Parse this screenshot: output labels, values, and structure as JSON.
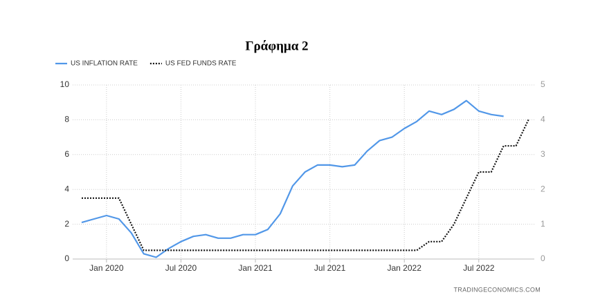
{
  "chart_data": {
    "type": "line",
    "title": "Γράφημα 2",
    "source": "TRADINGECONOMICS.COM",
    "categories": [
      null,
      null,
      "Jan 2020",
      null,
      null,
      null,
      null,
      null,
      "Jul 2020",
      null,
      null,
      null,
      null,
      null,
      "Jan 2021",
      null,
      null,
      null,
      null,
      null,
      "Jul 2021",
      null,
      null,
      null,
      null,
      null,
      "Jan 2022",
      null,
      null,
      null,
      null,
      null,
      "Jul 2022",
      null,
      null,
      null,
      null
    ],
    "series": [
      {
        "name": "US INFLATION RATE",
        "color": "#5197e8",
        "style": "solid",
        "values": [
          2.1,
          2.3,
          2.5,
          2.3,
          1.5,
          0.3,
          0.1,
          0.6,
          1.0,
          1.3,
          1.4,
          1.2,
          1.2,
          1.4,
          1.4,
          1.7,
          2.6,
          4.2,
          5.0,
          5.4,
          5.4,
          5.3,
          5.4,
          6.2,
          6.8,
          7.0,
          7.5,
          7.9,
          8.5,
          8.3,
          8.6,
          9.1,
          8.5,
          8.3,
          8.2,
          null,
          null
        ]
      },
      {
        "name": "US FED FUNDS RATE",
        "color": "#111111",
        "style": "dotted",
        "axis": "y2",
        "values": [
          1.75,
          1.75,
          1.75,
          1.75,
          1.0,
          0.25,
          0.25,
          0.25,
          0.25,
          0.25,
          0.25,
          0.25,
          0.25,
          0.25,
          0.25,
          0.25,
          0.25,
          0.25,
          0.25,
          0.25,
          0.25,
          0.25,
          0.25,
          0.25,
          0.25,
          0.25,
          0.25,
          0.25,
          0.5,
          0.5,
          1.0,
          1.75,
          2.5,
          2.5,
          3.25,
          3.25,
          4.0
        ]
      }
    ],
    "ylim": [
      0,
      10
    ],
    "yticks": [
      0,
      2,
      4,
      6,
      8,
      10
    ],
    "y2lim": [
      0,
      5
    ],
    "y2ticks": [
      0,
      1,
      2,
      3,
      4,
      5
    ],
    "grid": true
  }
}
